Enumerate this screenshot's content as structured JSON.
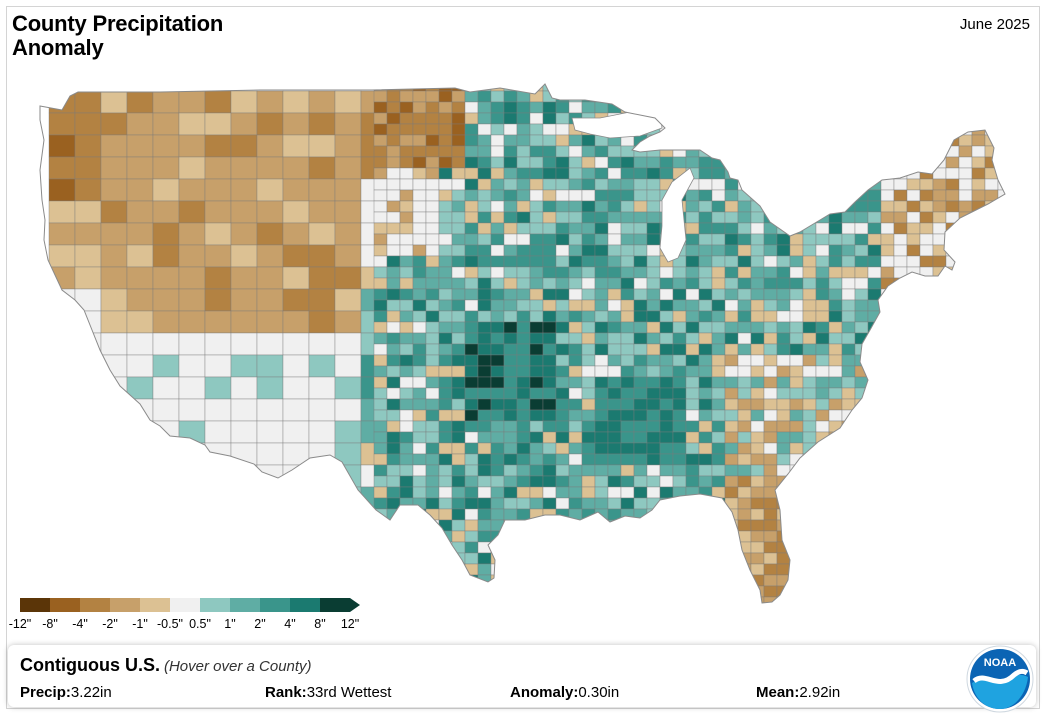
{
  "header": {
    "title": "County Precipitation Anomaly",
    "period": "June 2025"
  },
  "colors": {
    "neg12": "#5b3508",
    "neg8": "#9a6120",
    "neg4": "#b38242",
    "neg2": "#c7a06a",
    "neg1": "#dcc193",
    "neutral": "#f0f0f0",
    "pos05": "#8ec8c0",
    "pos1": "#5fada4",
    "pos2": "#3a958b",
    "pos4": "#1b7a70",
    "pos8": "#0a3d33",
    "border": "#7a7a7a",
    "noaa_blue": "#1f7fc8"
  },
  "legend": {
    "labels": [
      "-12\"",
      "-8\"",
      "-4\"",
      "-2\"",
      "-1\"",
      "-0.5\"",
      "0.5\"",
      "1\"",
      "2\"",
      "4\"",
      "8\"",
      "12\""
    ]
  },
  "info": {
    "region": "Contiguous U.S.",
    "hint": "(Hover over a County)",
    "precip_label": "Precip:",
    "precip_value": "3.22in",
    "rank_label": "Rank:",
    "rank_value": "33rd Wettest",
    "anomaly_label": "Anomaly:",
    "anomaly_value": "0.30in",
    "mean_label": "Mean:",
    "mean_value": "2.92in"
  },
  "logo": {
    "text": "NOAA"
  }
}
